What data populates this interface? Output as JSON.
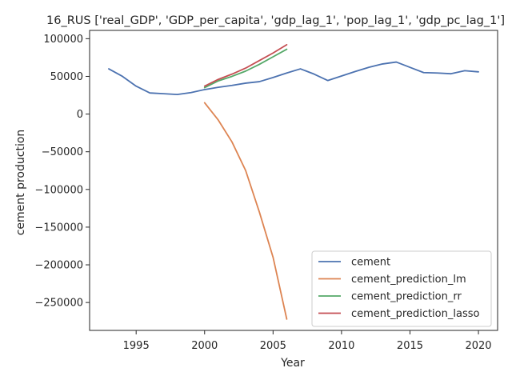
{
  "chart_data": {
    "type": "line",
    "title": "16_RUS ['real_GDP', 'GDP_per_capita', 'gdp_lag_1', 'pop_lag_1', 'gdp_pc_lag_1']",
    "xlabel": "Year",
    "ylabel": "cement production",
    "xlim": [
      1991.6,
      2021.4
    ],
    "ylim": [
      -287000,
      111000
    ],
    "x_ticks": [
      1995,
      2000,
      2005,
      2010,
      2015,
      2020
    ],
    "y_ticks": [
      100000,
      50000,
      0,
      -50000,
      -100000,
      -150000,
      -200000,
      -250000
    ],
    "x_tick_labels": [
      "1995",
      "2000",
      "2005",
      "2010",
      "2015",
      "2020"
    ],
    "y_tick_labels": [
      "100000",
      "50000",
      "0",
      "−50000",
      "−100000",
      "−150000",
      "−200000",
      "−250000"
    ],
    "grid": false,
    "legend_position": "lower-right",
    "series": [
      {
        "name": "cement",
        "color": "#4c72b0",
        "x": [
          1993,
          1994,
          1995,
          1996,
          1997,
          1998,
          1999,
          2000,
          2001,
          2002,
          2003,
          2004,
          2005,
          2006,
          2007,
          2008,
          2009,
          2010,
          2011,
          2012,
          2013,
          2014,
          2015,
          2016,
          2017,
          2018,
          2019,
          2020
        ],
        "y": [
          60000,
          50000,
          37000,
          28000,
          27000,
          26000,
          28500,
          32500,
          35500,
          38000,
          41000,
          43000,
          48500,
          54500,
          60000,
          53000,
          44500,
          50500,
          56500,
          62000,
          66500,
          69000,
          62000,
          55000,
          54500,
          53500,
          57500,
          56000
        ]
      },
      {
        "name": "cement_prediction_lm",
        "color": "#dd8452",
        "x": [
          2000,
          2001,
          2002,
          2003,
          2004,
          2005,
          2006
        ],
        "y": [
          15000,
          -8000,
          -37000,
          -75000,
          -130000,
          -190000,
          -272000
        ]
      },
      {
        "name": "cement_prediction_rr",
        "color": "#55a868",
        "x": [
          2000,
          2001,
          2002,
          2003,
          2004,
          2005,
          2006
        ],
        "y": [
          35000,
          44000,
          50000,
          57000,
          66000,
          76000,
          86000
        ]
      },
      {
        "name": "cement_prediction_lasso",
        "color": "#c44e52",
        "x": [
          2000,
          2001,
          2002,
          2003,
          2004,
          2005,
          2006
        ],
        "y": [
          37000,
          46000,
          53000,
          61000,
          71000,
          81000,
          92000
        ]
      }
    ]
  }
}
